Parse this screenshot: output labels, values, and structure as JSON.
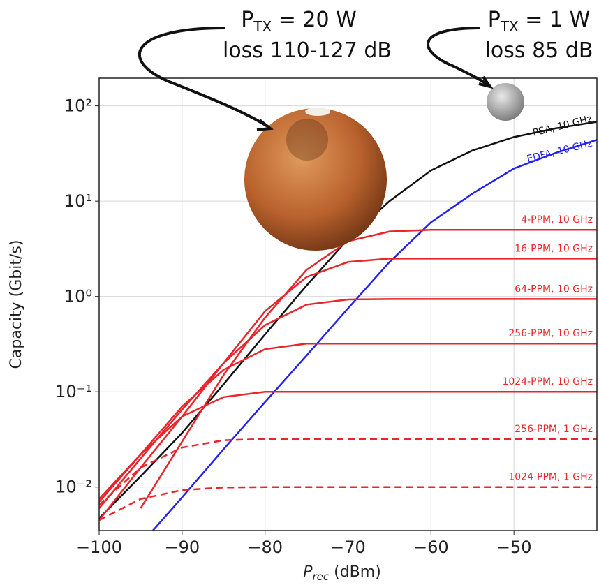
{
  "chart_data": {
    "type": "line",
    "y_label": "Capacity (Gbit/s)",
    "x_label_main": "P",
    "x_label_sub": "rec",
    "x_label_unit": " (dBm)",
    "log_y": true,
    "grid": true,
    "xlim": [
      -100,
      -40
    ],
    "ylim": [
      0.0035,
      195
    ],
    "xticks": [
      {
        "value": -100,
        "label": "−100"
      },
      {
        "value": -90,
        "label": "−90"
      },
      {
        "value": -80,
        "label": "−80"
      },
      {
        "value": -70,
        "label": "−70"
      },
      {
        "value": -60,
        "label": "−60"
      },
      {
        "value": -50,
        "label": "−50"
      }
    ],
    "yticks": [
      {
        "value": 0.01,
        "label": "10⁻²"
      },
      {
        "value": 0.1,
        "label": "10⁻¹"
      },
      {
        "value": 1,
        "label": "10⁰"
      },
      {
        "value": 10,
        "label": "10¹"
      },
      {
        "value": 100,
        "label": "10²"
      }
    ],
    "x": [
      -100,
      -95,
      -90,
      -85,
      -80,
      -75,
      -70,
      -65,
      -60,
      -55,
      -50,
      -45,
      -40
    ],
    "series": [
      {
        "name": "PSA, 10 GHz",
        "color": "#111111",
        "dashed": false,
        "values": [
          0.0047,
          0.013,
          0.037,
          0.12,
          0.4,
          1.3,
          4.0,
          10,
          21,
          34,
          47,
          58,
          68
        ]
      },
      {
        "name": "EDFA, 10 GHz",
        "color": "#2222ee",
        "dashed": false,
        "values": [
          null,
          0.0025,
          0.0078,
          0.025,
          0.078,
          0.24,
          0.75,
          2.3,
          6,
          12,
          22,
          32,
          44
        ]
      },
      {
        "name": "4-PPM, 10 GHz",
        "color": "#e8252a",
        "dashed": false,
        "values": [
          null,
          0.006,
          0.03,
          0.15,
          0.6,
          1.9,
          3.8,
          4.8,
          5,
          5,
          5,
          5,
          5
        ]
      },
      {
        "name": "16-PPM, 10 GHz",
        "color": "#e8252a",
        "dashed": false,
        "values": [
          0.0045,
          0.016,
          0.055,
          0.2,
          0.7,
          1.6,
          2.3,
          2.5,
          2.5,
          2.5,
          2.5,
          2.5,
          2.5
        ]
      },
      {
        "name": "64-PPM, 10 GHz",
        "color": "#e8252a",
        "dashed": false,
        "values": [
          0.006,
          0.02,
          0.065,
          0.2,
          0.5,
          0.82,
          0.93,
          0.94,
          0.94,
          0.94,
          0.94,
          0.94,
          0.94
        ]
      },
      {
        "name": "256-PPM, 10 GHz",
        "color": "#e8252a",
        "dashed": false,
        "values": [
          0.007,
          0.022,
          0.07,
          0.17,
          0.28,
          0.32,
          0.32,
          0.32,
          0.32,
          0.32,
          0.32,
          0.32,
          0.32
        ]
      },
      {
        "name": "1024-PPM, 10 GHz",
        "color": "#e8252a",
        "dashed": false,
        "values": [
          0.0075,
          0.022,
          0.055,
          0.088,
          0.1,
          0.1,
          0.1,
          0.1,
          0.1,
          0.1,
          0.1,
          0.1,
          0.1
        ]
      },
      {
        "name": "256-PPM, 1 GHz",
        "color": "#e8252a",
        "dashed": true,
        "values": [
          0.0065,
          0.016,
          0.026,
          0.031,
          0.032,
          0.032,
          0.032,
          0.032,
          0.032,
          0.032,
          0.032,
          0.032,
          0.032
        ]
      },
      {
        "name": "1024-PPM, 1 GHz",
        "color": "#e8252a",
        "dashed": true,
        "values": [
          0.0045,
          0.0075,
          0.0093,
          0.0099,
          0.01,
          0.01,
          0.01,
          0.01,
          0.01,
          0.01,
          0.01,
          0.01,
          0.01
        ]
      }
    ],
    "annotations": [
      {
        "p": "P",
        "sub": "TX",
        "power": " = 20 W",
        "loss": "loss 110-127 dB"
      },
      {
        "p": "P",
        "sub": "TX",
        "power": " = 1 W",
        "loss": "loss 85 dB"
      }
    ]
  }
}
